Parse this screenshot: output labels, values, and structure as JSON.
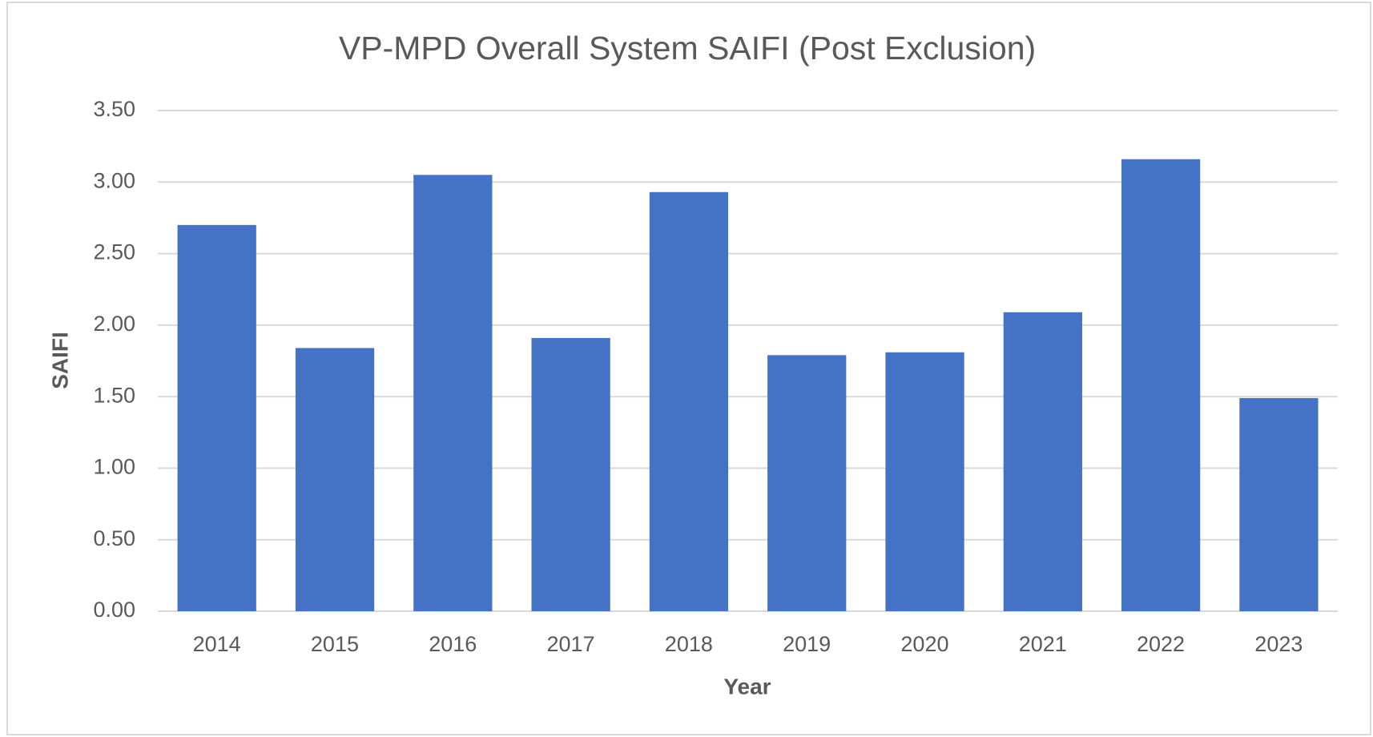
{
  "chart_data": {
    "type": "bar",
    "title": "VP-MPD Overall System SAIFI (Post Exclusion)",
    "x_label": "Year",
    "y_label": "SAIFI",
    "categories": [
      "2014",
      "2015",
      "2016",
      "2017",
      "2018",
      "2019",
      "2020",
      "2021",
      "2022",
      "2023"
    ],
    "values": [
      2.7,
      1.84,
      3.05,
      1.91,
      2.93,
      1.79,
      1.81,
      2.09,
      3.16,
      1.49
    ],
    "color": "#4472c4",
    "ylim": [
      0,
      3.5
    ],
    "yticks": [
      {
        "value": 0,
        "label": "0.00"
      },
      {
        "value": 0.5,
        "label": "0.50"
      },
      {
        "value": 1,
        "label": "1.00"
      },
      {
        "value": 1.5,
        "label": "1.50"
      },
      {
        "value": 2,
        "label": "2.00"
      },
      {
        "value": 2.5,
        "label": "2.50"
      },
      {
        "value": 3,
        "label": "3.00"
      },
      {
        "value": 3.5,
        "label": "3.50"
      }
    ],
    "grid": true
  }
}
